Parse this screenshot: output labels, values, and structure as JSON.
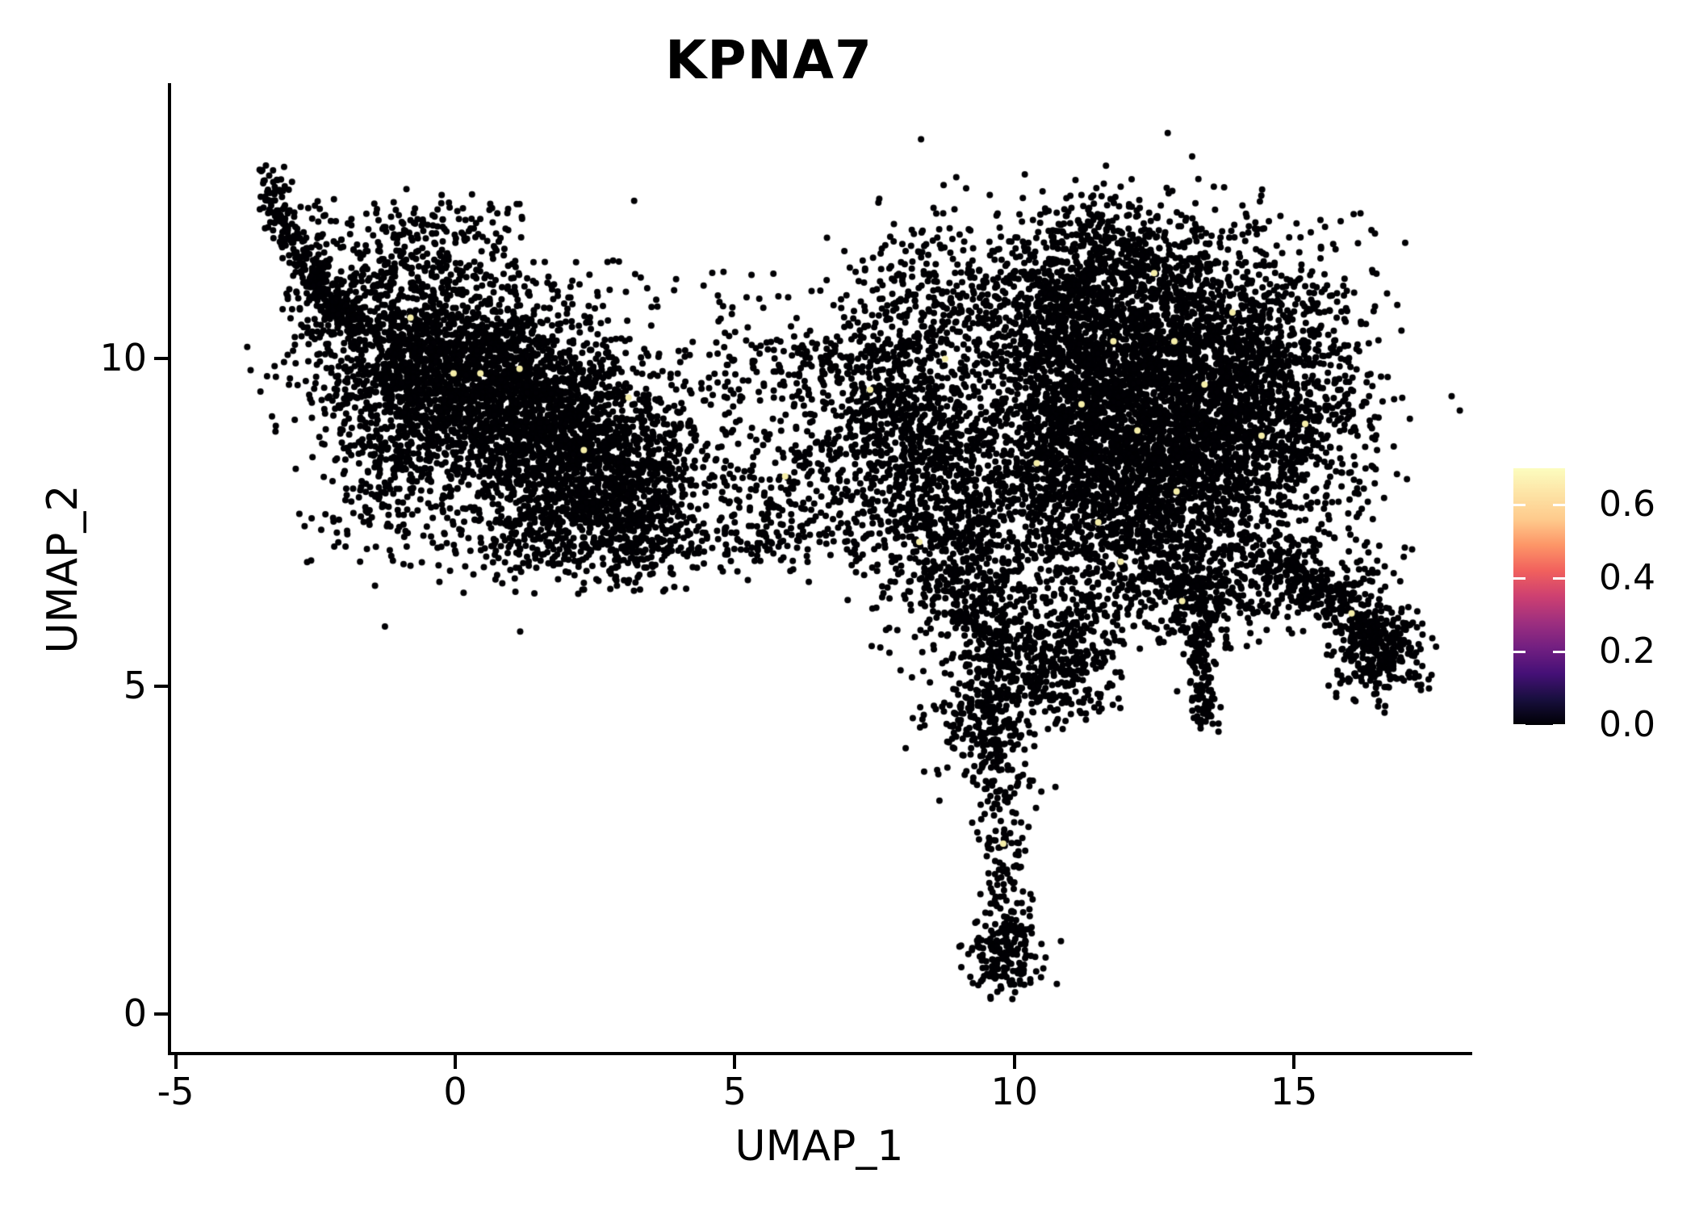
{
  "title": "KPNA7",
  "chart_data": {
    "type": "scatter",
    "title": "KPNA7",
    "xlabel": "UMAP_1",
    "ylabel": "UMAP_2",
    "xlim": [
      -5.11,
      18.13
    ],
    "ylim": [
      -0.6,
      14.17
    ],
    "x_tick_values": [
      -5,
      0,
      5,
      10,
      15
    ],
    "x_tick_labels": [
      "-5",
      "0",
      "5",
      "10",
      "15"
    ],
    "y_tick_values": [
      0,
      5,
      10
    ],
    "y_tick_labels": [
      "0",
      "5",
      "10"
    ],
    "grid": false,
    "legend_position": "right",
    "point_color": "#010004",
    "point_radius_px": 4.0,
    "highlight_color": "#f4eda8",
    "colorbar": {
      "vmax": 0.7,
      "tick_values": [
        0.0,
        0.2,
        0.4,
        0.6
      ],
      "tick_labels": [
        "0.0",
        "0.2",
        "0.4",
        "0.6"
      ],
      "colormap": "magma",
      "gradient_stops": [
        "#000004",
        "#180f3e",
        "#451077",
        "#721f81",
        "#9e2f7f",
        "#cd4071",
        "#f1605d",
        "#fd9567",
        "#feca8c",
        "#fde3a5",
        "#fcfdbf"
      ]
    },
    "clusters": [
      {
        "t": "p",
        "pts": [
          [
            -3.35,
            12.75
          ],
          [
            -3.15,
            12.2
          ],
          [
            -2.8,
            11.55
          ],
          [
            -2.35,
            10.95
          ],
          [
            -1.8,
            10.5
          ]
        ],
        "jx": 0.15,
        "jy": 0.15,
        "n": 260
      },
      {
        "t": "g",
        "cx": -2.1,
        "cy": 11.0,
        "sx": 0.45,
        "sy": 0.5,
        "n": 150
      },
      {
        "t": "b",
        "x0": -2.6,
        "x1": 1.2,
        "y0": 10.9,
        "y1": 12.4,
        "n": 150
      },
      {
        "t": "g",
        "cx": -0.6,
        "cy": 11.6,
        "sx": 0.6,
        "sy": 0.35,
        "n": 120
      },
      {
        "t": "g",
        "cx": -0.55,
        "cy": 10.05,
        "sx": 1.0,
        "sy": 0.6,
        "n": 800
      },
      {
        "t": "g",
        "cx": 1.0,
        "cy": 9.35,
        "sx": 1.25,
        "sy": 0.75,
        "rot": -12,
        "n": 1650
      },
      {
        "t": "g",
        "cx": -0.9,
        "cy": 8.75,
        "sx": 0.75,
        "sy": 0.8,
        "n": 420
      },
      {
        "t": "g",
        "cx": 2.6,
        "cy": 8.35,
        "sx": 1.0,
        "sy": 0.65,
        "rot": -10,
        "n": 950
      },
      {
        "t": "g",
        "cx": 1.8,
        "cy": 7.35,
        "sx": 0.8,
        "sy": 0.4,
        "n": 300
      },
      {
        "t": "g",
        "cx": 3.4,
        "cy": 7.3,
        "sx": 0.45,
        "sy": 0.35,
        "n": 190
      },
      {
        "t": "b",
        "x0": -2.7,
        "x1": 5.0,
        "y0": 6.8,
        "y1": 11.5,
        "n": 320
      },
      {
        "t": "b",
        "x0": 4.8,
        "x1": 7.6,
        "y0": 7.2,
        "y1": 10.4,
        "n": 240
      },
      {
        "t": "g",
        "cx": 6.4,
        "cy": 8.0,
        "sx": 0.9,
        "sy": 0.55,
        "n": 150
      },
      {
        "t": "g",
        "cx": 6.6,
        "cy": 9.9,
        "sx": 0.8,
        "sy": 0.35,
        "n": 80
      },
      {
        "t": "g",
        "cx": 5.6,
        "cy": 7.2,
        "sx": 0.5,
        "sy": 0.3,
        "n": 60
      },
      {
        "t": "g",
        "cx": 8.6,
        "cy": 8.0,
        "sx": 0.8,
        "sy": 1.0,
        "n": 820
      },
      {
        "t": "g",
        "cx": 8.0,
        "cy": 9.3,
        "sx": 0.6,
        "sy": 0.6,
        "n": 300
      },
      {
        "t": "g",
        "cx": 8.4,
        "cy": 10.8,
        "sx": 0.8,
        "sy": 0.7,
        "n": 280
      },
      {
        "t": "g",
        "cx": 9.3,
        "cy": 6.6,
        "sx": 0.5,
        "sy": 0.6,
        "n": 250
      },
      {
        "t": "g",
        "cx": 12.5,
        "cy": 9.7,
        "sx": 1.5,
        "sy": 1.05,
        "rot": -8,
        "n": 2450
      },
      {
        "t": "g",
        "cx": 12.0,
        "cy": 8.1,
        "sx": 1.3,
        "sy": 0.75,
        "n": 1250
      },
      {
        "t": "g",
        "cx": 14.3,
        "cy": 9.2,
        "sx": 1.05,
        "sy": 1.0,
        "n": 880
      },
      {
        "t": "g",
        "cx": 12.2,
        "cy": 11.2,
        "sx": 1.15,
        "sy": 0.55,
        "n": 430
      },
      {
        "t": "g",
        "cx": 11.4,
        "cy": 11.9,
        "sx": 0.5,
        "sy": 0.35,
        "n": 80
      },
      {
        "t": "g",
        "cx": 10.6,
        "cy": 10.7,
        "sx": 0.65,
        "sy": 0.65,
        "n": 280
      },
      {
        "t": "g",
        "cx": 11.0,
        "cy": 9.0,
        "sx": 0.6,
        "sy": 0.8,
        "n": 380
      },
      {
        "t": "b",
        "x0": 10.0,
        "x1": 16.6,
        "y0": 6.2,
        "y1": 12.2,
        "n": 480
      },
      {
        "t": "g",
        "cx": 12.8,
        "cy": 6.7,
        "sx": 1.1,
        "sy": 0.5,
        "n": 330
      },
      {
        "t": "g",
        "cx": 9.4,
        "cy": 4.6,
        "sx": 0.55,
        "sy": 0.55,
        "n": 210
      },
      {
        "t": "g",
        "cx": 10.3,
        "cy": 5.4,
        "sx": 0.45,
        "sy": 0.5,
        "n": 140
      },
      {
        "t": "p",
        "pts": [
          [
            9.6,
            6.2
          ],
          [
            9.55,
            4.6
          ],
          [
            9.75,
            3.0
          ],
          [
            9.85,
            1.8
          ],
          [
            9.8,
            0.9
          ]
        ],
        "jx": 0.25,
        "jy": 0.2,
        "n": 320
      },
      {
        "t": "g",
        "cx": 9.85,
        "cy": 0.85,
        "sx": 0.33,
        "sy": 0.3,
        "n": 150
      },
      {
        "t": "b",
        "x0": 10.3,
        "x1": 11.9,
        "y0": 4.6,
        "y1": 6.4,
        "n": 150
      },
      {
        "t": "g",
        "cx": 10.9,
        "cy": 5.6,
        "sx": 0.5,
        "sy": 0.5,
        "n": 110
      },
      {
        "t": "p",
        "pts": [
          [
            13.3,
            5.9
          ],
          [
            13.35,
            5.1
          ],
          [
            13.45,
            4.45
          ]
        ],
        "jx": 0.13,
        "jy": 0.12,
        "n": 130
      },
      {
        "t": "g",
        "cx": 13.3,
        "cy": 6.3,
        "sx": 0.5,
        "sy": 0.4,
        "n": 170
      },
      {
        "t": "p",
        "pts": [
          [
            14.5,
            7.0
          ],
          [
            15.3,
            6.5
          ],
          [
            16.1,
            6.1
          ],
          [
            16.7,
            5.6
          ]
        ],
        "jx": 0.28,
        "jy": 0.22,
        "n": 320
      },
      {
        "t": "g",
        "cx": 16.55,
        "cy": 5.5,
        "sx": 0.4,
        "sy": 0.35,
        "n": 230
      },
      {
        "t": "b",
        "x0": 14.2,
        "x1": 17.0,
        "y0": 5.8,
        "y1": 7.3,
        "n": 80
      },
      {
        "t": "b",
        "x0": 4.5,
        "x1": 8.0,
        "y0": 10.4,
        "y1": 11.5,
        "n": 25
      },
      {
        "t": "pts",
        "pts": [
          [
            10.33,
            3.56
          ],
          [
            6.9,
            10.9
          ],
          [
            3.2,
            12.4
          ],
          [
            0.3,
            12.5
          ],
          [
            1.1,
            12.35
          ],
          [
            -0.1,
            12.3
          ],
          [
            17.2,
            5.9
          ],
          [
            16.9,
            6.6
          ]
        ],
        "n": 8
      }
    ],
    "highlight_points": [
      [
        -0.8,
        10.62
      ],
      [
        0.45,
        9.77
      ],
      [
        1.15,
        9.84
      ],
      [
        -0.03,
        9.77
      ],
      [
        2.3,
        8.6
      ],
      [
        3.1,
        9.4
      ],
      [
        5.9,
        8.2
      ],
      [
        7.42,
        9.52
      ],
      [
        8.76,
        9.99
      ],
      [
        8.3,
        7.2
      ],
      [
        11.77,
        10.26
      ],
      [
        12.86,
        10.26
      ],
      [
        12.9,
        7.97
      ],
      [
        11.5,
        7.5
      ],
      [
        14.42,
        8.82
      ],
      [
        13.4,
        9.6
      ],
      [
        12.2,
        8.9
      ],
      [
        13.9,
        10.7
      ],
      [
        11.2,
        9.3
      ],
      [
        15.2,
        9.0
      ],
      [
        12.5,
        11.3
      ],
      [
        11.9,
        6.9
      ],
      [
        10.4,
        8.4
      ],
      [
        16.03,
        6.11
      ],
      [
        9.8,
        2.6
      ],
      [
        13.0,
        6.3
      ]
    ]
  }
}
